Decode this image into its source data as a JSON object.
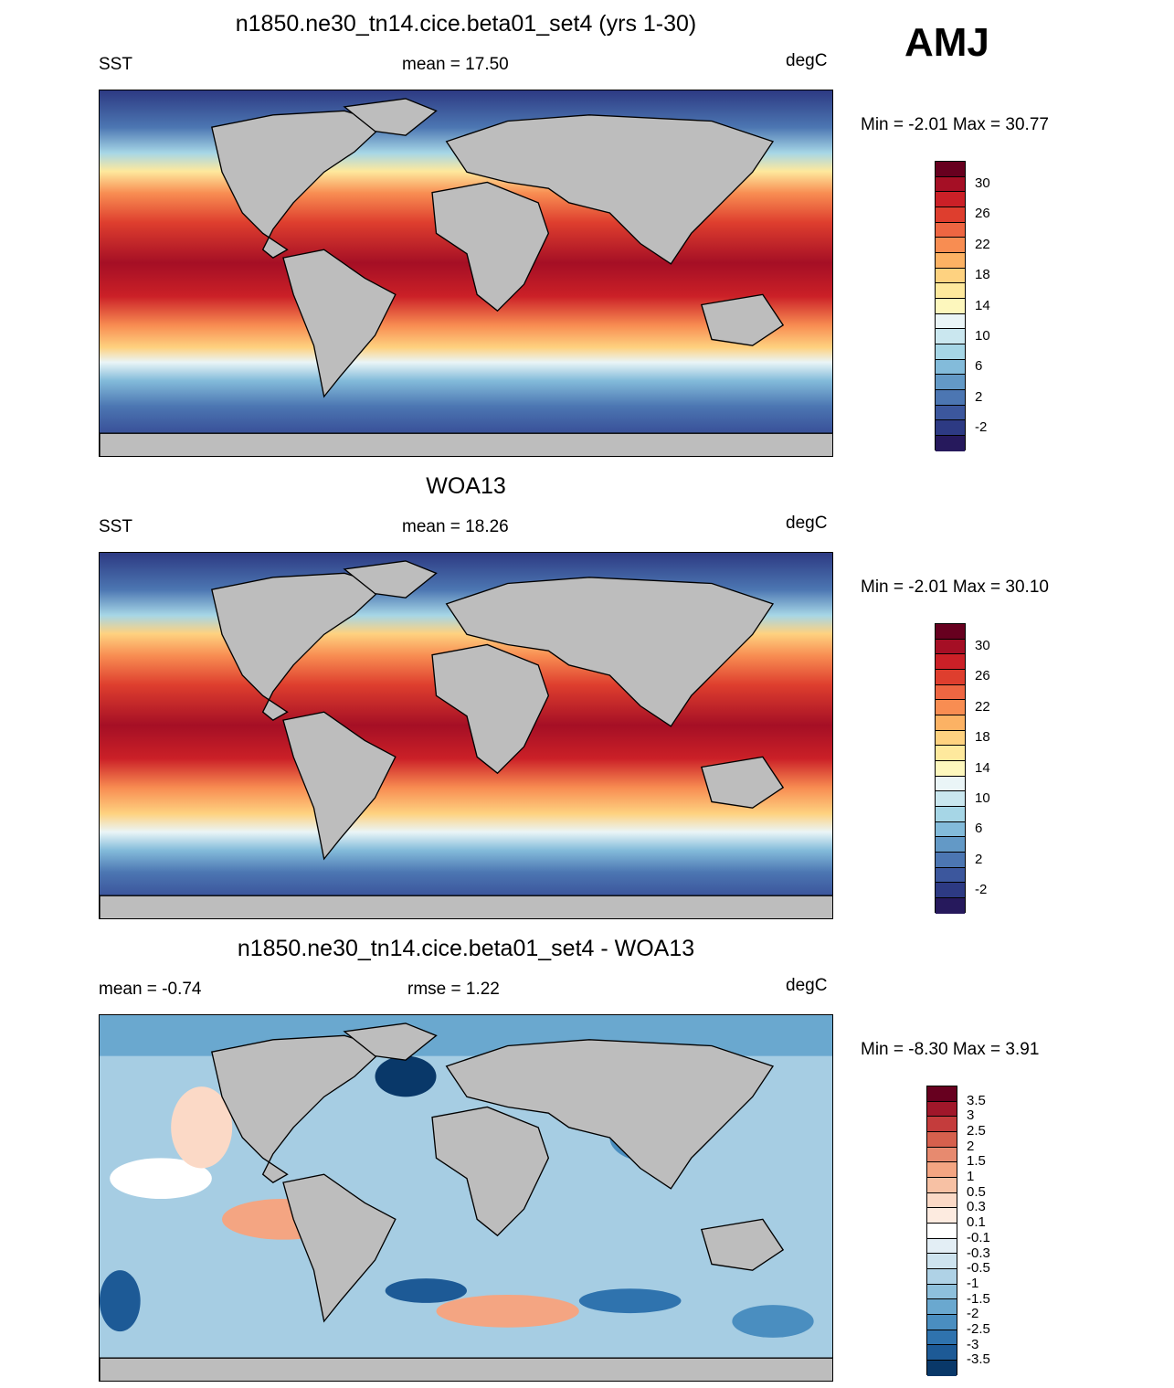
{
  "season": "AMJ",
  "panels": [
    {
      "id": "model",
      "title": "n1850.ne30_tn14.cice.beta01_set4 (yrs 1-30)",
      "left_label": "SST",
      "center_label": "mean =  17.50",
      "right_label": "degC",
      "minmax": "Min =  -2.01 Max =  30.77",
      "kind": "sst"
    },
    {
      "id": "obs",
      "title": "WOA13",
      "left_label": "SST",
      "center_label": "mean =  18.26",
      "right_label": "degC",
      "minmax": "Min =  -2.01 Max =  30.10",
      "kind": "sst"
    },
    {
      "id": "diff",
      "title": "n1850.ne30_tn14.cice.beta01_set4 - WOA13",
      "left_label": "mean =  -0.74",
      "center_label": "rmse =   1.22",
      "right_label": "degC",
      "minmax": "Min =  -8.30 Max =   3.91",
      "kind": "diff"
    }
  ],
  "sst_colorbar": {
    "labels": [
      "30",
      "26",
      "22",
      "18",
      "14",
      "10",
      "6",
      "2",
      "-2"
    ],
    "colors": [
      "#67001f",
      "#a50f25",
      "#cb2027",
      "#de3e2e",
      "#ee6642",
      "#f88d52",
      "#fcb264",
      "#fed280",
      "#fee99d",
      "#fdf7bd",
      "#eaf5f7",
      "#cae7ef",
      "#a6d6e6",
      "#83bbda",
      "#6399c6",
      "#4c76b2",
      "#3c579d",
      "#2d3a83",
      "#26195c"
    ]
  },
  "diff_colorbar": {
    "labels": [
      "3.5",
      "3",
      "2.5",
      "2",
      "1.5",
      "1",
      "0.5",
      "0.3",
      "0.1",
      "-0.1",
      "-0.3",
      "-0.5",
      "-1",
      "-1.5",
      "-2",
      "-2.5",
      "-3",
      "-3.5"
    ],
    "colors": [
      "#67001f",
      "#a0172a",
      "#c43c3c",
      "#d6604d",
      "#e78a6f",
      "#f4a582",
      "#f7c1a4",
      "#fbd9c6",
      "#fdebe0",
      "#ffffff",
      "#e3eef5",
      "#cde3ef",
      "#afd2e6",
      "#8ec0dc",
      "#6aa8cf",
      "#4a8ec0",
      "#2f73ae",
      "#1d5a96",
      "#093869"
    ]
  }
}
